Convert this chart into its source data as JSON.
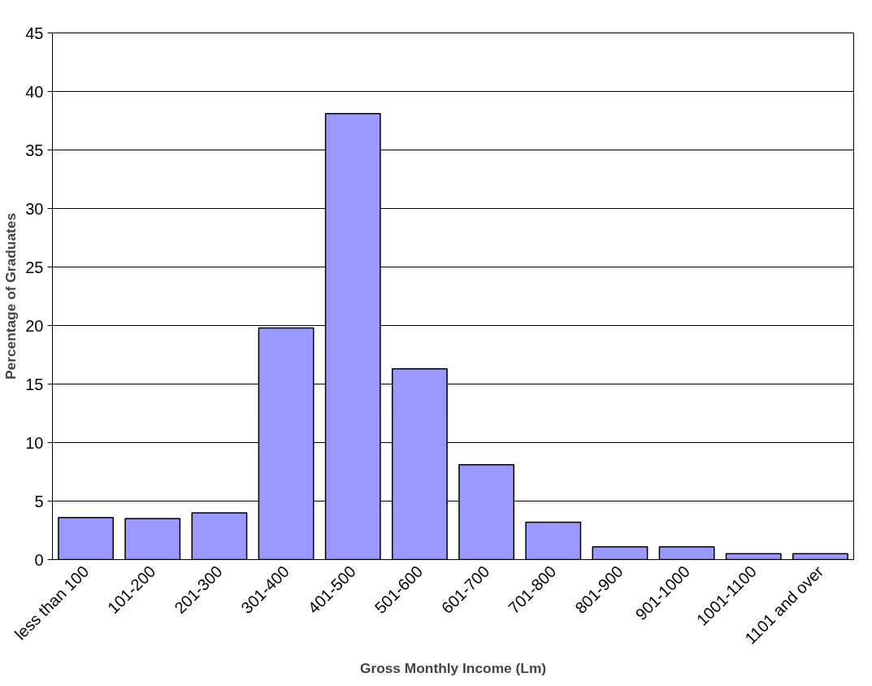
{
  "chart_data": {
    "type": "bar",
    "xlabel": "Gross Monthly Income (Lm)",
    "ylabel": "Percentage of Graduates",
    "categories": [
      "less than 100",
      "101-200",
      "201-300",
      "301-400",
      "401-500",
      "501-600",
      "601-700",
      "701-800",
      "801-900",
      "901-1000",
      "1001-1100",
      "1101 and over"
    ],
    "values": [
      3.6,
      3.5,
      4.0,
      19.8,
      38.1,
      16.3,
      8.1,
      3.2,
      1.1,
      1.1,
      0.5,
      0.5
    ],
    "color": "#9999ff",
    "ylim": [
      0,
      45
    ],
    "yticks": [
      0,
      5,
      10,
      15,
      20,
      25,
      30,
      35,
      40,
      45
    ],
    "grid": "y"
  }
}
